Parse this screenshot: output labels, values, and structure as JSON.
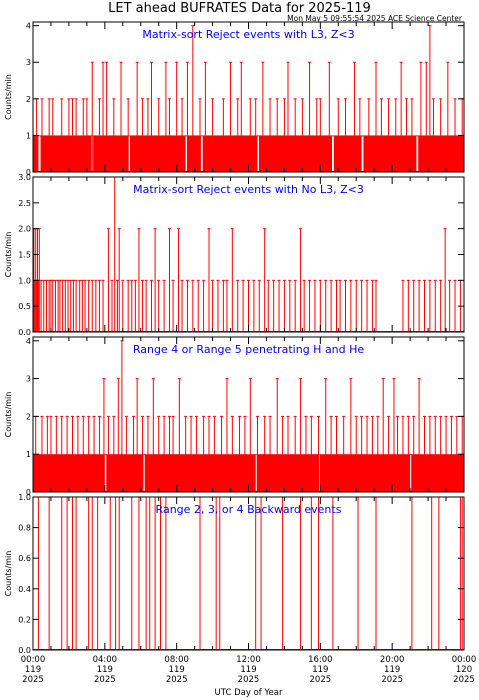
{
  "header": {
    "title": "LET ahead BUFRATES Data for 2025-119",
    "timestamp": "Mon May  5 09:55:54 2025 ACE Science Center"
  },
  "colors": {
    "trace": "#ff0000",
    "panel_title": "#0000ff",
    "axes": "#000000"
  },
  "x_axis": {
    "label": "UTC Day of Year",
    "range_hours": [
      0,
      24
    ],
    "ticks": [
      {
        "hour": 0,
        "time": "00:00",
        "doy": "119",
        "year": "2025"
      },
      {
        "hour": 4,
        "time": "04:00",
        "doy": "119",
        "year": "2025"
      },
      {
        "hour": 8,
        "time": "08:00",
        "doy": "119",
        "year": "2025"
      },
      {
        "hour": 12,
        "time": "12:00",
        "doy": "119",
        "year": "2025"
      },
      {
        "hour": 16,
        "time": "16:00",
        "doy": "119",
        "year": "2025"
      },
      {
        "hour": 20,
        "time": "20:00",
        "doy": "119",
        "year": "2025"
      },
      {
        "hour": 24,
        "time": "00:00",
        "doy": "120",
        "year": "2025"
      }
    ]
  },
  "chart_data": [
    {
      "type": "line",
      "title": "Matrix-sort Reject events with L3, Z<3",
      "ylabel": "Counts/min",
      "ylim": [
        0,
        4.1
      ],
      "yticks": [
        0,
        1,
        2,
        3,
        4
      ],
      "ytick_labels": [
        "0",
        "1",
        "2",
        "3",
        "4"
      ],
      "baseline": 1,
      "baseline_gaps": [
        [
          0.3,
          0.42
        ],
        [
          3.25,
          3.35
        ],
        [
          5.3,
          5.4
        ],
        [
          8.5,
          8.6
        ],
        [
          9.35,
          9.45
        ],
        [
          12.5,
          12.58
        ],
        [
          16.65,
          16.75
        ],
        [
          18.3,
          18.4
        ],
        [
          21.35,
          21.45
        ]
      ],
      "spikes": [
        [
          0.2,
          2
        ],
        [
          0.5,
          2
        ],
        [
          0.9,
          2
        ],
        [
          1.1,
          2
        ],
        [
          1.6,
          2
        ],
        [
          2.0,
          2
        ],
        [
          2.2,
          2
        ],
        [
          2.4,
          2
        ],
        [
          2.8,
          2
        ],
        [
          3.0,
          2
        ],
        [
          3.3,
          3
        ],
        [
          3.7,
          2
        ],
        [
          3.9,
          3
        ],
        [
          4.1,
          3
        ],
        [
          4.5,
          2
        ],
        [
          4.9,
          3
        ],
        [
          5.3,
          2
        ],
        [
          5.8,
          3
        ],
        [
          6.1,
          2
        ],
        [
          6.4,
          2
        ],
        [
          6.6,
          3
        ],
        [
          7.0,
          2
        ],
        [
          7.4,
          3
        ],
        [
          7.6,
          2
        ],
        [
          8.0,
          3
        ],
        [
          8.3,
          2
        ],
        [
          8.6,
          3
        ],
        [
          8.9,
          4
        ],
        [
          9.3,
          2
        ],
        [
          9.6,
          3
        ],
        [
          10.0,
          2
        ],
        [
          10.6,
          2
        ],
        [
          11.0,
          3
        ],
        [
          11.4,
          2
        ],
        [
          11.6,
          3
        ],
        [
          12.1,
          2
        ],
        [
          12.4,
          2
        ],
        [
          12.8,
          3
        ],
        [
          13.2,
          2
        ],
        [
          13.6,
          2
        ],
        [
          14.0,
          2
        ],
        [
          14.2,
          3
        ],
        [
          14.6,
          2
        ],
        [
          15.0,
          2
        ],
        [
          15.4,
          3
        ],
        [
          15.8,
          2
        ],
        [
          16.0,
          2
        ],
        [
          16.5,
          3
        ],
        [
          17.0,
          2
        ],
        [
          17.4,
          2
        ],
        [
          17.9,
          3
        ],
        [
          18.2,
          2
        ],
        [
          18.7,
          2
        ],
        [
          19.1,
          3
        ],
        [
          19.4,
          2
        ],
        [
          19.8,
          2
        ],
        [
          20.2,
          2
        ],
        [
          20.5,
          3
        ],
        [
          20.8,
          2
        ],
        [
          21.1,
          2
        ],
        [
          21.6,
          3
        ],
        [
          21.9,
          3
        ],
        [
          22.1,
          4
        ],
        [
          22.3,
          2
        ],
        [
          22.7,
          2
        ],
        [
          23.1,
          3
        ],
        [
          23.5,
          2
        ],
        [
          23.9,
          2
        ]
      ]
    },
    {
      "type": "line",
      "title": "Matrix-sort Reject events with No L3, Z<3",
      "ylabel": "Counts/min",
      "ylim": [
        0,
        3.0
      ],
      "yticks": [
        0,
        0.5,
        1,
        1.5,
        2,
        2.5,
        3
      ],
      "ytick_labels": [
        "0.0",
        "0.5",
        "1.0",
        "1.5",
        "2.0",
        "2.5",
        "3.0"
      ],
      "baseline": 0,
      "spikes": [
        [
          0.05,
          2
        ],
        [
          0.1,
          1
        ],
        [
          0.15,
          2
        ],
        [
          0.2,
          1
        ],
        [
          0.25,
          2
        ],
        [
          0.3,
          1
        ],
        [
          0.35,
          2
        ],
        [
          0.45,
          1
        ],
        [
          0.6,
          1
        ],
        [
          0.75,
          1
        ],
        [
          0.9,
          1
        ],
        [
          1.0,
          1
        ],
        [
          1.1,
          1
        ],
        [
          1.25,
          1
        ],
        [
          1.4,
          1
        ],
        [
          1.5,
          1
        ],
        [
          1.65,
          1
        ],
        [
          1.8,
          1
        ],
        [
          1.95,
          1
        ],
        [
          2.1,
          1
        ],
        [
          2.25,
          1
        ],
        [
          2.4,
          1
        ],
        [
          2.6,
          1
        ],
        [
          2.75,
          1
        ],
        [
          2.9,
          1
        ],
        [
          3.1,
          1
        ],
        [
          3.3,
          1
        ],
        [
          3.5,
          1
        ],
        [
          3.7,
          1
        ],
        [
          3.9,
          1
        ],
        [
          4.2,
          2
        ],
        [
          4.4,
          1
        ],
        [
          4.55,
          3
        ],
        [
          4.7,
          1
        ],
        [
          4.8,
          2
        ],
        [
          5.0,
          1
        ],
        [
          5.3,
          1
        ],
        [
          5.5,
          1
        ],
        [
          5.7,
          1
        ],
        [
          5.9,
          2
        ],
        [
          6.1,
          1
        ],
        [
          6.3,
          1
        ],
        [
          6.6,
          1
        ],
        [
          6.8,
          2
        ],
        [
          7.0,
          1
        ],
        [
          7.3,
          1
        ],
        [
          7.6,
          2
        ],
        [
          7.8,
          1
        ],
        [
          8.1,
          2
        ],
        [
          8.3,
          1
        ],
        [
          8.6,
          1
        ],
        [
          8.9,
          1
        ],
        [
          9.2,
          1
        ],
        [
          9.5,
          1
        ],
        [
          9.8,
          2
        ],
        [
          10.0,
          1
        ],
        [
          10.3,
          1
        ],
        [
          10.6,
          1
        ],
        [
          10.8,
          1
        ],
        [
          11.1,
          2
        ],
        [
          11.4,
          1
        ],
        [
          11.7,
          1
        ],
        [
          12.0,
          1
        ],
        [
          12.3,
          1
        ],
        [
          12.6,
          1
        ],
        [
          12.9,
          2
        ],
        [
          13.1,
          1
        ],
        [
          13.4,
          1
        ],
        [
          13.7,
          1
        ],
        [
          14.0,
          1
        ],
        [
          14.3,
          1
        ],
        [
          14.6,
          1
        ],
        [
          14.9,
          2
        ],
        [
          15.1,
          1
        ],
        [
          15.4,
          1
        ],
        [
          15.7,
          1
        ],
        [
          16.0,
          1
        ],
        [
          16.3,
          1
        ],
        [
          16.6,
          1
        ],
        [
          16.9,
          1
        ],
        [
          17.1,
          1
        ],
        [
          17.4,
          1
        ],
        [
          17.7,
          1
        ],
        [
          18.0,
          1
        ],
        [
          18.3,
          1
        ],
        [
          18.6,
          1
        ],
        [
          18.9,
          1
        ],
        [
          19.1,
          1
        ],
        [
          20.6,
          1
        ],
        [
          20.9,
          1
        ],
        [
          21.2,
          1
        ],
        [
          21.5,
          1
        ],
        [
          21.8,
          1
        ],
        [
          22.1,
          1
        ],
        [
          22.4,
          1
        ],
        [
          22.7,
          1
        ],
        [
          22.95,
          2
        ],
        [
          23.2,
          1
        ],
        [
          23.5,
          1
        ],
        [
          23.8,
          1
        ]
      ]
    },
    {
      "type": "line",
      "title": "Range 4 or Range 5 penetrating H and He",
      "ylabel": "Counts/min",
      "ylim": [
        0,
        4.1
      ],
      "yticks": [
        0,
        1,
        2,
        3,
        4
      ],
      "ytick_labels": [
        "0",
        "1",
        "2",
        "3",
        "4"
      ],
      "baseline": 1,
      "baseline_gaps": [
        [
          4.0,
          4.08
        ],
        [
          6.15,
          6.22
        ],
        [
          12.4,
          12.46
        ],
        [
          15.9,
          15.96
        ],
        [
          21.0,
          21.06
        ]
      ],
      "spikes": [
        [
          0.15,
          2
        ],
        [
          0.5,
          2
        ],
        [
          0.8,
          2
        ],
        [
          1.0,
          2
        ],
        [
          1.3,
          2
        ],
        [
          1.6,
          2
        ],
        [
          1.9,
          2
        ],
        [
          2.2,
          2
        ],
        [
          2.5,
          2
        ],
        [
          2.8,
          2
        ],
        [
          3.1,
          2
        ],
        [
          3.4,
          2
        ],
        [
          3.7,
          2
        ],
        [
          3.95,
          3
        ],
        [
          4.2,
          2
        ],
        [
          4.5,
          2
        ],
        [
          4.75,
          3
        ],
        [
          4.95,
          4
        ],
        [
          5.2,
          2
        ],
        [
          5.6,
          2
        ],
        [
          5.8,
          3
        ],
        [
          6.1,
          2
        ],
        [
          6.4,
          2
        ],
        [
          6.7,
          3
        ],
        [
          7.0,
          2
        ],
        [
          7.3,
          2
        ],
        [
          7.6,
          2
        ],
        [
          7.8,
          2
        ],
        [
          8.15,
          3
        ],
        [
          8.5,
          2
        ],
        [
          8.8,
          2
        ],
        [
          9.1,
          2
        ],
        [
          9.5,
          2
        ],
        [
          9.8,
          2
        ],
        [
          10.1,
          2
        ],
        [
          10.5,
          2
        ],
        [
          10.8,
          3
        ],
        [
          11.1,
          2
        ],
        [
          11.5,
          2
        ],
        [
          11.8,
          2
        ],
        [
          12.1,
          3
        ],
        [
          12.5,
          2
        ],
        [
          12.9,
          2
        ],
        [
          13.2,
          2
        ],
        [
          13.6,
          3
        ],
        [
          13.9,
          2
        ],
        [
          14.2,
          2
        ],
        [
          14.6,
          2
        ],
        [
          14.9,
          3
        ],
        [
          15.2,
          2
        ],
        [
          15.5,
          2
        ],
        [
          15.9,
          2
        ],
        [
          16.3,
          3
        ],
        [
          16.6,
          2
        ],
        [
          16.9,
          2
        ],
        [
          17.3,
          2
        ],
        [
          17.7,
          3
        ],
        [
          18.0,
          2
        ],
        [
          18.3,
          2
        ],
        [
          18.6,
          2
        ],
        [
          18.9,
          2
        ],
        [
          19.2,
          2
        ],
        [
          19.5,
          3
        ],
        [
          19.8,
          2
        ],
        [
          20.1,
          3
        ],
        [
          20.3,
          2
        ],
        [
          20.6,
          2
        ],
        [
          20.9,
          2
        ],
        [
          21.2,
          2
        ],
        [
          21.5,
          3
        ],
        [
          21.8,
          2
        ],
        [
          22.1,
          2
        ],
        [
          22.4,
          2
        ],
        [
          22.7,
          2
        ],
        [
          23.0,
          2
        ],
        [
          23.3,
          2
        ],
        [
          23.6,
          2
        ],
        [
          23.9,
          2
        ]
      ]
    },
    {
      "type": "line",
      "title": "Range 2, 3, or 4 Backward events",
      "ylabel": "Counts/min",
      "ylim": [
        0,
        1.0
      ],
      "yticks": [
        0,
        0.2,
        0.4,
        0.6,
        0.8,
        1.0
      ],
      "ytick_labels": [
        "0.0",
        "0.2",
        "0.4",
        "0.6",
        "0.8",
        "1.0"
      ],
      "baseline": 0,
      "spikes": [
        [
          0.3,
          1
        ],
        [
          0.9,
          1
        ],
        [
          1.6,
          1
        ],
        [
          1.9,
          1
        ],
        [
          2.2,
          1
        ],
        [
          2.4,
          1
        ],
        [
          3.1,
          1
        ],
        [
          3.3,
          1
        ],
        [
          3.6,
          1
        ],
        [
          4.3,
          1
        ],
        [
          4.6,
          1
        ],
        [
          4.8,
          1
        ],
        [
          5.5,
          1
        ],
        [
          5.9,
          1
        ],
        [
          6.3,
          1
        ],
        [
          6.5,
          1
        ],
        [
          6.8,
          1
        ],
        [
          7.1,
          1
        ],
        [
          7.4,
          1
        ],
        [
          9.3,
          1
        ],
        [
          10.2,
          1
        ],
        [
          10.4,
          1
        ],
        [
          12.4,
          1
        ],
        [
          12.7,
          1
        ],
        [
          13.9,
          1
        ],
        [
          14.9,
          1
        ],
        [
          15.5,
          1
        ],
        [
          15.9,
          1
        ],
        [
          16.7,
          1
        ],
        [
          18.1,
          1
        ],
        [
          19.1,
          1
        ],
        [
          21.1,
          1
        ],
        [
          22.2,
          1
        ],
        [
          22.6,
          1
        ],
        [
          23.8,
          1
        ],
        [
          23.9,
          1
        ]
      ]
    }
  ]
}
